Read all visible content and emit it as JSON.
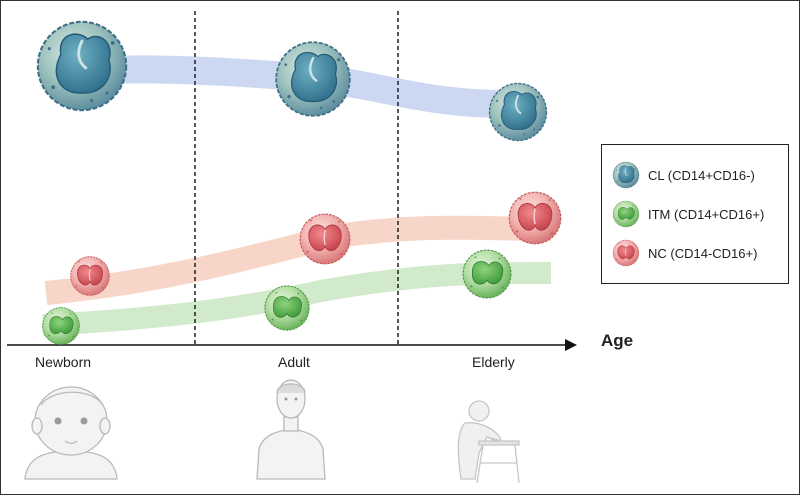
{
  "stages": [
    "Newborn",
    "Adult",
    "Elderly"
  ],
  "axis": {
    "x_label": "Age"
  },
  "legend": {
    "items": [
      {
        "label": "CL (CD14+CD16-)",
        "color": "#4a8fa8",
        "icon": "classical-monocyte-icon"
      },
      {
        "label": "ITM (CD14+CD16+)",
        "color": "#6cc46a",
        "icon": "intermediate-monocyte-icon"
      },
      {
        "label": "NC (CD14-CD16+)",
        "color": "#e86f76",
        "icon": "nonclassical-monocyte-icon"
      }
    ]
  },
  "colors": {
    "cl_band": "#c7d4f1",
    "nc_band": "#f6d2c3",
    "itm_band": "#cde8c6",
    "cl_cell": "#4a8fa8",
    "itm_cell": "#6cc46a",
    "nc_cell": "#e86f76"
  }
}
